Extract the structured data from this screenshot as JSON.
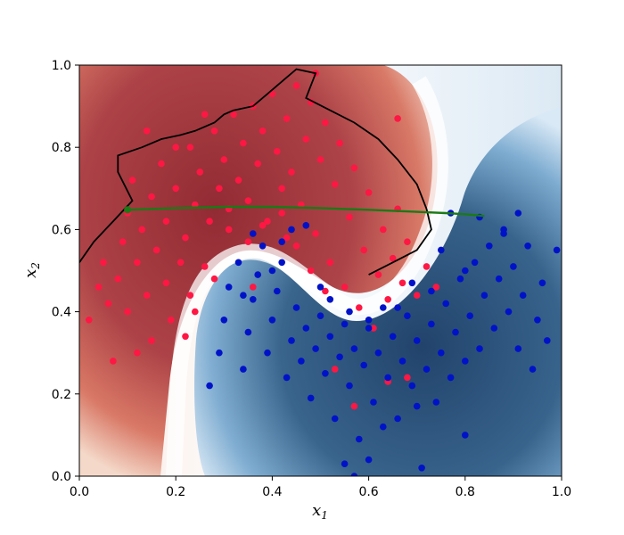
{
  "chart_data": {
    "type": "scatter",
    "title": "",
    "xlabel": "x",
    "xlabel_sub": "1",
    "ylabel": "x",
    "ylabel_sub": "2",
    "xlim": [
      0.0,
      1.0
    ],
    "ylim": [
      0.0,
      1.0
    ],
    "x_ticks": [
      0.0,
      0.2,
      0.4,
      0.6,
      0.8,
      1.0
    ],
    "y_ticks": [
      0.0,
      0.2,
      0.4,
      0.6,
      0.8,
      1.0
    ],
    "x_tick_labels": [
      "0.0",
      "0.2",
      "0.4",
      "0.6",
      "0.8",
      "1.0"
    ],
    "y_tick_labels": [
      "0.0",
      "0.2",
      "0.4",
      "0.6",
      "0.8",
      "1.0"
    ],
    "grid": false,
    "legend": "none",
    "background": "filled contour (probability map), red for the red class region, blue for the blue class region, white at the decision boundary",
    "colors": {
      "red_class": "#ff1744",
      "blue_class": "#0012c8",
      "contour_red_dark": "#8a1f25",
      "contour_blue_dark": "#16375f",
      "black_boundary_line": "#000000",
      "green_path": "#1a7a16"
    },
    "series": [
      {
        "points": [
          [
            0.02,
            0.38
          ],
          [
            0.04,
            0.46
          ],
          [
            0.05,
            0.52
          ],
          [
            0.06,
            0.42
          ],
          [
            0.07,
            0.28
          ],
          [
            0.08,
            0.48
          ],
          [
            0.09,
            0.57
          ],
          [
            0.1,
            0.64
          ],
          [
            0.1,
            0.4
          ],
          [
            0.11,
            0.72
          ],
          [
            0.12,
            0.3
          ],
          [
            0.12,
            0.52
          ],
          [
            0.13,
            0.6
          ],
          [
            0.14,
            0.44
          ],
          [
            0.15,
            0.68
          ],
          [
            0.15,
            0.33
          ],
          [
            0.16,
            0.55
          ],
          [
            0.17,
            0.76
          ],
          [
            0.18,
            0.47
          ],
          [
            0.18,
            0.62
          ],
          [
            0.19,
            0.38
          ],
          [
            0.2,
            0.7
          ],
          [
            0.21,
            0.52
          ],
          [
            0.22,
            0.58
          ],
          [
            0.23,
            0.8
          ],
          [
            0.23,
            0.44
          ],
          [
            0.24,
            0.66
          ],
          [
            0.25,
            0.74
          ],
          [
            0.26,
            0.51
          ],
          [
            0.27,
            0.62
          ],
          [
            0.28,
            0.84
          ],
          [
            0.29,
            0.7
          ],
          [
            0.3,
            0.77
          ],
          [
            0.31,
            0.6
          ],
          [
            0.32,
            0.88
          ],
          [
            0.33,
            0.72
          ],
          [
            0.34,
            0.81
          ],
          [
            0.35,
            0.67
          ],
          [
            0.36,
            0.9
          ],
          [
            0.37,
            0.76
          ],
          [
            0.38,
            0.84
          ],
          [
            0.39,
            0.62
          ],
          [
            0.4,
            0.93
          ],
          [
            0.41,
            0.79
          ],
          [
            0.42,
            0.7
          ],
          [
            0.43,
            0.87
          ],
          [
            0.44,
            0.74
          ],
          [
            0.45,
            0.95
          ],
          [
            0.46,
            0.66
          ],
          [
            0.47,
            0.82
          ],
          [
            0.48,
            0.91
          ],
          [
            0.49,
            0.59
          ],
          [
            0.5,
            0.77
          ],
          [
            0.51,
            0.86
          ],
          [
            0.52,
            0.52
          ],
          [
            0.53,
            0.71
          ],
          [
            0.54,
            0.81
          ],
          [
            0.55,
            0.46
          ],
          [
            0.56,
            0.63
          ],
          [
            0.57,
            0.75
          ],
          [
            0.58,
            0.41
          ],
          [
            0.59,
            0.55
          ],
          [
            0.6,
            0.69
          ],
          [
            0.61,
            0.36
          ],
          [
            0.62,
            0.49
          ],
          [
            0.63,
            0.6
          ],
          [
            0.64,
            0.43
          ],
          [
            0.65,
            0.53
          ],
          [
            0.66,
            0.65
          ],
          [
            0.67,
            0.47
          ],
          [
            0.68,
            0.57
          ],
          [
            0.7,
            0.44
          ],
          [
            0.72,
            0.51
          ],
          [
            0.74,
            0.46
          ],
          [
            0.53,
            0.26
          ],
          [
            0.57,
            0.17
          ],
          [
            0.64,
            0.23
          ],
          [
            0.68,
            0.24
          ],
          [
            0.66,
            0.87
          ],
          [
            0.49,
            0.98
          ],
          [
            0.31,
            0.65
          ],
          [
            0.42,
            0.64
          ],
          [
            0.35,
            0.57
          ],
          [
            0.28,
            0.48
          ],
          [
            0.24,
            0.4
          ],
          [
            0.45,
            0.56
          ],
          [
            0.48,
            0.5
          ],
          [
            0.51,
            0.45
          ],
          [
            0.38,
            0.61
          ],
          [
            0.22,
            0.34
          ],
          [
            0.2,
            0.8
          ],
          [
            0.14,
            0.84
          ],
          [
            0.26,
            0.88
          ],
          [
            0.43,
            0.58
          ],
          [
            0.36,
            0.46
          ]
        ]
      },
      {
        "points": [
          [
            0.27,
            0.22
          ],
          [
            0.29,
            0.3
          ],
          [
            0.3,
            0.38
          ],
          [
            0.31,
            0.46
          ],
          [
            0.33,
            0.52
          ],
          [
            0.34,
            0.26
          ],
          [
            0.35,
            0.35
          ],
          [
            0.36,
            0.43
          ],
          [
            0.37,
            0.49
          ],
          [
            0.38,
            0.56
          ],
          [
            0.39,
            0.3
          ],
          [
            0.4,
            0.38
          ],
          [
            0.41,
            0.45
          ],
          [
            0.42,
            0.52
          ],
          [
            0.43,
            0.24
          ],
          [
            0.44,
            0.33
          ],
          [
            0.45,
            0.41
          ],
          [
            0.46,
            0.28
          ],
          [
            0.47,
            0.36
          ],
          [
            0.48,
            0.19
          ],
          [
            0.49,
            0.31
          ],
          [
            0.5,
            0.39
          ],
          [
            0.51,
            0.25
          ],
          [
            0.52,
            0.34
          ],
          [
            0.53,
            0.14
          ],
          [
            0.54,
            0.29
          ],
          [
            0.55,
            0.37
          ],
          [
            0.56,
            0.22
          ],
          [
            0.57,
            0.31
          ],
          [
            0.58,
            0.09
          ],
          [
            0.59,
            0.27
          ],
          [
            0.6,
            0.36
          ],
          [
            0.61,
            0.18
          ],
          [
            0.62,
            0.3
          ],
          [
            0.63,
            0.41
          ],
          [
            0.64,
            0.24
          ],
          [
            0.65,
            0.34
          ],
          [
            0.66,
            0.14
          ],
          [
            0.67,
            0.28
          ],
          [
            0.68,
            0.39
          ],
          [
            0.69,
            0.22
          ],
          [
            0.7,
            0.33
          ],
          [
            0.71,
            0.02
          ],
          [
            0.72,
            0.26
          ],
          [
            0.73,
            0.37
          ],
          [
            0.74,
            0.18
          ],
          [
            0.75,
            0.3
          ],
          [
            0.76,
            0.42
          ],
          [
            0.77,
            0.24
          ],
          [
            0.78,
            0.35
          ],
          [
            0.79,
            0.48
          ],
          [
            0.8,
            0.28
          ],
          [
            0.81,
            0.39
          ],
          [
            0.82,
            0.52
          ],
          [
            0.83,
            0.31
          ],
          [
            0.84,
            0.44
          ],
          [
            0.85,
            0.56
          ],
          [
            0.86,
            0.36
          ],
          [
            0.87,
            0.48
          ],
          [
            0.88,
            0.6
          ],
          [
            0.89,
            0.4
          ],
          [
            0.9,
            0.51
          ],
          [
            0.91,
            0.31
          ],
          [
            0.92,
            0.44
          ],
          [
            0.93,
            0.56
          ],
          [
            0.94,
            0.26
          ],
          [
            0.95,
            0.38
          ],
          [
            0.96,
            0.47
          ],
          [
            0.97,
            0.33
          ],
          [
            0.99,
            0.55
          ],
          [
            0.77,
            0.64
          ],
          [
            0.83,
            0.63
          ],
          [
            0.88,
            0.59
          ],
          [
            0.91,
            0.64
          ],
          [
            0.75,
            0.55
          ],
          [
            0.8,
            0.5
          ],
          [
            0.73,
            0.45
          ],
          [
            0.57,
            0.0
          ],
          [
            0.6,
            0.04
          ],
          [
            0.55,
            0.03
          ],
          [
            0.63,
            0.12
          ],
          [
            0.7,
            0.17
          ],
          [
            0.8,
            0.1
          ],
          [
            0.44,
            0.6
          ],
          [
            0.36,
            0.59
          ],
          [
            0.42,
            0.57
          ],
          [
            0.47,
            0.61
          ],
          [
            0.4,
            0.5
          ],
          [
            0.34,
            0.44
          ],
          [
            0.5,
            0.46
          ],
          [
            0.52,
            0.43
          ],
          [
            0.56,
            0.4
          ],
          [
            0.6,
            0.38
          ],
          [
            0.66,
            0.41
          ],
          [
            0.69,
            0.47
          ]
        ]
      }
    ],
    "black_boundary_line": [
      [
        0.0,
        0.52
      ],
      [
        0.03,
        0.57
      ],
      [
        0.07,
        0.62
      ],
      [
        0.11,
        0.67
      ],
      [
        0.08,
        0.74
      ],
      [
        0.08,
        0.78
      ],
      [
        0.13,
        0.8
      ],
      [
        0.17,
        0.82
      ],
      [
        0.21,
        0.83
      ],
      [
        0.24,
        0.84
      ],
      [
        0.28,
        0.86
      ],
      [
        0.3,
        0.88
      ],
      [
        0.32,
        0.89
      ],
      [
        0.36,
        0.9
      ],
      [
        0.39,
        0.93
      ],
      [
        0.41,
        0.95
      ],
      [
        0.43,
        0.97
      ],
      [
        0.45,
        0.99
      ],
      [
        0.49,
        0.98
      ],
      [
        0.48,
        0.95
      ],
      [
        0.47,
        0.92
      ],
      [
        0.52,
        0.89
      ],
      [
        0.57,
        0.86
      ],
      [
        0.62,
        0.82
      ],
      [
        0.66,
        0.77
      ],
      [
        0.7,
        0.71
      ],
      [
        0.72,
        0.65
      ],
      [
        0.73,
        0.6
      ],
      [
        0.7,
        0.55
      ],
      [
        0.65,
        0.52
      ],
      [
        0.6,
        0.49
      ]
    ],
    "green_path": [
      [
        0.1,
        0.648
      ],
      [
        0.2,
        0.652
      ],
      [
        0.3,
        0.655
      ],
      [
        0.4,
        0.655
      ],
      [
        0.5,
        0.652
      ],
      [
        0.6,
        0.648
      ],
      [
        0.7,
        0.643
      ],
      [
        0.76,
        0.64
      ],
      [
        0.8,
        0.637
      ],
      [
        0.84,
        0.633
      ]
    ]
  }
}
